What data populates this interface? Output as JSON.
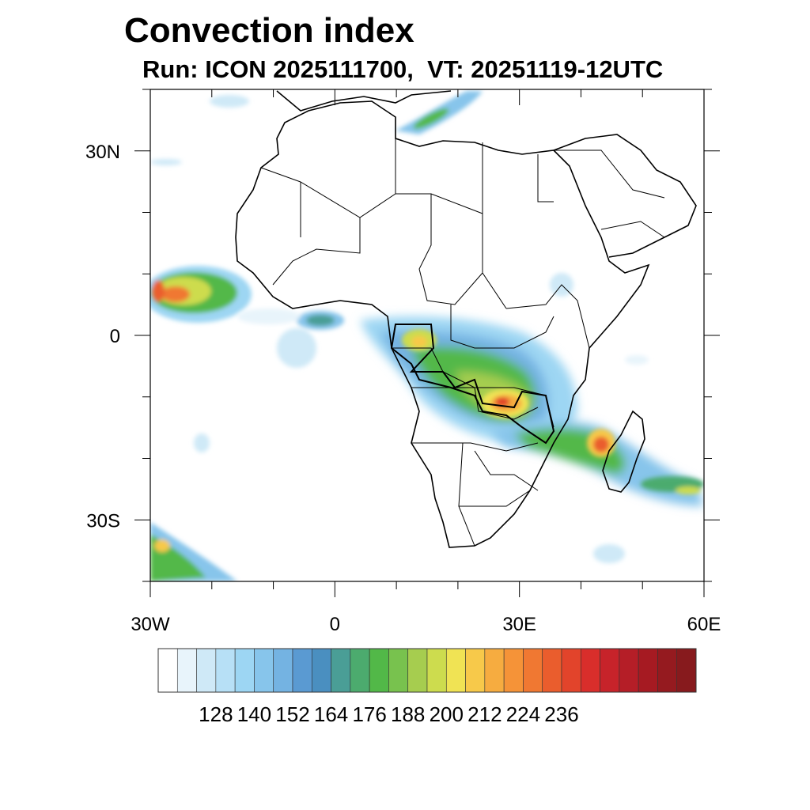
{
  "title": "Convection index",
  "subtitle": "Run: ICON 2025111700,  VT: 20251119-12UTC",
  "map": {
    "region": "Africa",
    "lon_range": [
      -30,
      60
    ],
    "lat_range": [
      -40,
      40
    ],
    "x_ticks": [
      {
        "lon": -30,
        "label": "30W"
      },
      {
        "lon": 0,
        "label": "0"
      },
      {
        "lon": 30,
        "label": "30E"
      },
      {
        "lon": 60,
        "label": "60E"
      }
    ],
    "y_ticks": [
      {
        "lat": 30,
        "label": "30N"
      },
      {
        "lat": 0,
        "label": "0"
      },
      {
        "lat": -30,
        "label": "30S"
      }
    ]
  },
  "colorbar": {
    "labels": [
      "128",
      "140",
      "152",
      "164",
      "176",
      "188",
      "200",
      "212",
      "224",
      "236"
    ],
    "colors": [
      "#ffffff",
      "#e8f4fb",
      "#cfe9f7",
      "#b7e0f6",
      "#9dd6f3",
      "#87c5eb",
      "#74b3e2",
      "#5a9ad2",
      "#4a8fc0",
      "#4a9e96",
      "#4cab6e",
      "#52b848",
      "#78c24e",
      "#a6cd4f",
      "#cddc4e",
      "#f0e354",
      "#f7c94a",
      "#f6ac40",
      "#f59338",
      "#f07832",
      "#ea5d2d",
      "#e2442b",
      "#d92e2b",
      "#c7232a",
      "#b51e27",
      "#a61a22",
      "#951a1f",
      "#871a1d"
    ]
  },
  "convection_areas": [
    {
      "name": "west-atlantic-itcz",
      "lon": -26,
      "lat": 8,
      "level": 5
    },
    {
      "name": "congo-basin",
      "lon": 20,
      "lat": -5,
      "level": 3
    },
    {
      "name": "zambia-core",
      "lon": 27,
      "lat": -11,
      "level": 6
    },
    {
      "name": "madagascar-channel",
      "lon": 44,
      "lat": -17,
      "level": 5
    },
    {
      "name": "indian-ocean-band",
      "lon": 52,
      "lat": -24,
      "level": 3
    },
    {
      "name": "south-atlantic-band",
      "lon": -27,
      "lat": -36,
      "level": 3
    },
    {
      "name": "mediterranean-band",
      "lon": 20,
      "lat": 36,
      "level": 2
    }
  ]
}
